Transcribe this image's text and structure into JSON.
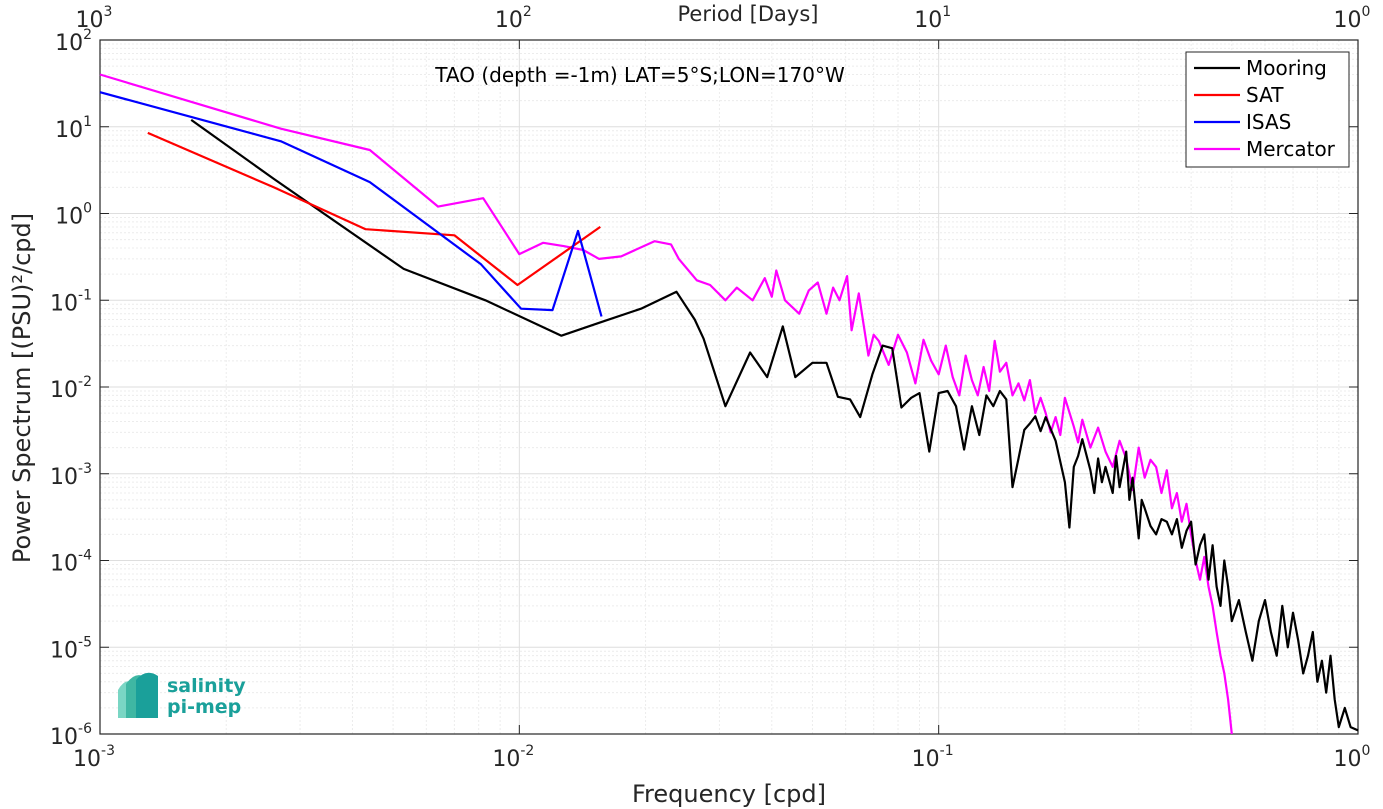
{
  "chart_data": {
    "type": "line",
    "title": "TAO (depth =-1m) LAT=5°S;LON=170°W",
    "xlabel": "Frequency [cpd]",
    "ylabel": "Power Spectrum [(PSU)²/cpd]",
    "top_xlabel": "Period [Days]",
    "xscale": "log",
    "yscale": "log",
    "xlim": [
      0.001,
      1
    ],
    "ylim": [
      1e-06,
      100
    ],
    "x_ticks": [
      {
        "value": 0.001,
        "base": "10",
        "exp": "-3"
      },
      {
        "value": 0.01,
        "base": "10",
        "exp": "-2"
      },
      {
        "value": 0.1,
        "base": "10",
        "exp": "-1"
      },
      {
        "value": 1,
        "base": "10",
        "exp": "0"
      }
    ],
    "top_ticks": [
      {
        "value": 0.001,
        "base": "10",
        "exp": "3"
      },
      {
        "value": 0.01,
        "base": "10",
        "exp": "2"
      },
      {
        "value": 0.1,
        "base": "10",
        "exp": "1"
      },
      {
        "value": 1,
        "base": "10",
        "exp": "0"
      }
    ],
    "y_ticks": [
      {
        "value": 100,
        "base": "10",
        "exp": "2"
      },
      {
        "value": 10,
        "base": "10",
        "exp": "1"
      },
      {
        "value": 1,
        "base": "10",
        "exp": "0"
      },
      {
        "value": 0.1,
        "base": "10",
        "exp": "-1"
      },
      {
        "value": 0.01,
        "base": "10",
        "exp": "-2"
      },
      {
        "value": 0.001,
        "base": "10",
        "exp": "-3"
      },
      {
        "value": 0.0001,
        "base": "10",
        "exp": "-4"
      },
      {
        "value": 1e-05,
        "base": "10",
        "exp": "-5"
      },
      {
        "value": 1e-06,
        "base": "10",
        "exp": "-6"
      }
    ],
    "grid": true,
    "legend_position": "top-right",
    "series": [
      {
        "name": "Mooring",
        "color": "#000000",
        "points": [
          [
            0.00165,
            12
          ],
          [
            0.0026,
            2.5
          ],
          [
            0.0053,
            0.23
          ],
          [
            0.0083,
            0.1
          ],
          [
            0.0126,
            0.039
          ],
          [
            0.0155,
            0.055
          ],
          [
            0.0195,
            0.08
          ],
          [
            0.0237,
            0.125
          ],
          [
            0.0262,
            0.06
          ],
          [
            0.0275,
            0.036
          ],
          [
            0.031,
            0.006
          ],
          [
            0.0355,
            0.025
          ],
          [
            0.039,
            0.013
          ],
          [
            0.0425,
            0.05
          ],
          [
            0.0455,
            0.013
          ],
          [
            0.05,
            0.019
          ],
          [
            0.054,
            0.019
          ],
          [
            0.0575,
            0.0077
          ],
          [
            0.0615,
            0.0072
          ],
          [
            0.065,
            0.0045
          ],
          [
            0.0695,
            0.014
          ],
          [
            0.0735,
            0.03
          ],
          [
            0.0775,
            0.028
          ],
          [
            0.0815,
            0.0058
          ],
          [
            0.086,
            0.0075
          ],
          [
            0.09,
            0.0085
          ],
          [
            0.095,
            0.0018
          ],
          [
            0.1,
            0.0085
          ],
          [
            0.105,
            0.009
          ],
          [
            0.11,
            0.006
          ],
          [
            0.115,
            0.0019
          ],
          [
            0.12,
            0.006
          ],
          [
            0.125,
            0.0028
          ],
          [
            0.13,
            0.008
          ],
          [
            0.135,
            0.006
          ],
          [
            0.14,
            0.009
          ],
          [
            0.145,
            0.0072
          ],
          [
            0.15,
            0.0007
          ],
          [
            0.155,
            0.0015
          ],
          [
            0.16,
            0.0032
          ],
          [
            0.165,
            0.0038
          ],
          [
            0.17,
            0.0046
          ],
          [
            0.175,
            0.0031
          ],
          [
            0.18,
            0.0045
          ],
          [
            0.19,
            0.0024
          ],
          [
            0.2,
            0.0008
          ],
          [
            0.205,
            0.00024
          ],
          [
            0.21,
            0.0012
          ],
          [
            0.215,
            0.0016
          ],
          [
            0.22,
            0.0025
          ],
          [
            0.23,
            0.0011
          ],
          [
            0.235,
            0.0006
          ],
          [
            0.24,
            0.0015
          ],
          [
            0.245,
            0.0008
          ],
          [
            0.25,
            0.0012
          ],
          [
            0.26,
            0.0006
          ],
          [
            0.265,
            0.0016
          ],
          [
            0.27,
            0.0007
          ],
          [
            0.28,
            0.0018
          ],
          [
            0.285,
            0.0005
          ],
          [
            0.29,
            0.0009
          ],
          [
            0.3,
            0.00018
          ],
          [
            0.305,
            0.0005
          ],
          [
            0.31,
            0.0004
          ],
          [
            0.32,
            0.00025
          ],
          [
            0.33,
            0.0002
          ],
          [
            0.34,
            0.0003
          ],
          [
            0.35,
            0.00028
          ],
          [
            0.36,
            0.0002
          ],
          [
            0.37,
            0.0003
          ],
          [
            0.38,
            0.00014
          ],
          [
            0.39,
            0.00022
          ],
          [
            0.4,
            0.00028
          ],
          [
            0.41,
            9e-05
          ],
          [
            0.42,
            0.00015
          ],
          [
            0.43,
            0.0002
          ],
          [
            0.44,
            6e-05
          ],
          [
            0.45,
            0.00015
          ],
          [
            0.46,
            5e-05
          ],
          [
            0.47,
            3e-05
          ],
          [
            0.48,
            0.0001
          ],
          [
            0.49,
            5e-05
          ],
          [
            0.5,
            2e-05
          ],
          [
            0.52,
            3.5e-05
          ],
          [
            0.54,
            1.5e-05
          ],
          [
            0.56,
            7e-06
          ],
          [
            0.58,
            2e-05
          ],
          [
            0.6,
            3.5e-05
          ],
          [
            0.62,
            1.5e-05
          ],
          [
            0.64,
            8e-06
          ],
          [
            0.66,
            3e-05
          ],
          [
            0.68,
            1e-05
          ],
          [
            0.7,
            2.5e-05
          ],
          [
            0.72,
            1.2e-05
          ],
          [
            0.74,
            5e-06
          ],
          [
            0.76,
            8e-06
          ],
          [
            0.78,
            1.5e-05
          ],
          [
            0.8,
            4e-06
          ],
          [
            0.82,
            7e-06
          ],
          [
            0.84,
            3e-06
          ],
          [
            0.86,
            8e-06
          ],
          [
            0.88,
            2.5e-06
          ],
          [
            0.9,
            1.2e-06
          ],
          [
            0.93,
            2e-06
          ],
          [
            0.96,
            1.2e-06
          ],
          [
            1.0,
            1.1e-06
          ]
        ]
      },
      {
        "name": "SAT",
        "color": "#ff0000",
        "points": [
          [
            0.0013,
            8.5
          ],
          [
            0.0026,
            2.0
          ],
          [
            0.0043,
            0.66
          ],
          [
            0.007,
            0.56
          ],
          [
            0.0099,
            0.15
          ],
          [
            0.0156,
            0.7
          ]
        ]
      },
      {
        "name": "ISAS",
        "color": "#0000ff",
        "points": [
          [
            0.001,
            25
          ],
          [
            0.0027,
            6.8
          ],
          [
            0.0044,
            2.3
          ],
          [
            0.0081,
            0.26
          ],
          [
            0.0101,
            0.08
          ],
          [
            0.012,
            0.077
          ],
          [
            0.0138,
            0.63
          ],
          [
            0.0157,
            0.065
          ]
        ]
      },
      {
        "name": "Mercator",
        "color": "#ff00ff",
        "points": [
          [
            0.001,
            40
          ],
          [
            0.0027,
            9.5
          ],
          [
            0.0044,
            5.4
          ],
          [
            0.0064,
            1.2
          ],
          [
            0.0082,
            1.5
          ],
          [
            0.01,
            0.34
          ],
          [
            0.0114,
            0.46
          ],
          [
            0.0128,
            0.42
          ],
          [
            0.0142,
            0.38
          ],
          [
            0.0155,
            0.3
          ],
          [
            0.0175,
            0.32
          ],
          [
            0.021,
            0.48
          ],
          [
            0.023,
            0.44
          ],
          [
            0.024,
            0.3
          ],
          [
            0.0265,
            0.17
          ],
          [
            0.0285,
            0.15
          ],
          [
            0.031,
            0.1
          ],
          [
            0.033,
            0.14
          ],
          [
            0.036,
            0.1
          ],
          [
            0.0385,
            0.18
          ],
          [
            0.04,
            0.11
          ],
          [
            0.041,
            0.22
          ],
          [
            0.043,
            0.1
          ],
          [
            0.0465,
            0.07
          ],
          [
            0.049,
            0.13
          ],
          [
            0.0515,
            0.16
          ],
          [
            0.054,
            0.07
          ],
          [
            0.056,
            0.14
          ],
          [
            0.058,
            0.1
          ],
          [
            0.0605,
            0.19
          ],
          [
            0.062,
            0.045
          ],
          [
            0.0645,
            0.12
          ],
          [
            0.068,
            0.023
          ],
          [
            0.07,
            0.04
          ],
          [
            0.072,
            0.034
          ],
          [
            0.076,
            0.018
          ],
          [
            0.08,
            0.04
          ],
          [
            0.084,
            0.025
          ],
          [
            0.088,
            0.011
          ],
          [
            0.092,
            0.035
          ],
          [
            0.096,
            0.02
          ],
          [
            0.1,
            0.014
          ],
          [
            0.104,
            0.03
          ],
          [
            0.108,
            0.013
          ],
          [
            0.112,
            0.008
          ],
          [
            0.116,
            0.023
          ],
          [
            0.12,
            0.012
          ],
          [
            0.124,
            0.008
          ],
          [
            0.128,
            0.017
          ],
          [
            0.132,
            0.009
          ],
          [
            0.136,
            0.034
          ],
          [
            0.14,
            0.015
          ],
          [
            0.145,
            0.019
          ],
          [
            0.15,
            0.008
          ],
          [
            0.155,
            0.011
          ],
          [
            0.16,
            0.007
          ],
          [
            0.165,
            0.012
          ],
          [
            0.17,
            0.005
          ],
          [
            0.175,
            0.0075
          ],
          [
            0.18,
            0.005
          ],
          [
            0.185,
            0.003
          ],
          [
            0.19,
            0.0045
          ],
          [
            0.195,
            0.0028
          ],
          [
            0.2,
            0.0075
          ],
          [
            0.21,
            0.0035
          ],
          [
            0.215,
            0.0023
          ],
          [
            0.22,
            0.0042
          ],
          [
            0.23,
            0.002
          ],
          [
            0.24,
            0.0034
          ],
          [
            0.25,
            0.0018
          ],
          [
            0.26,
            0.0012
          ],
          [
            0.27,
            0.0024
          ],
          [
            0.28,
            0.0015
          ],
          [
            0.29,
            0.00065
          ],
          [
            0.3,
            0.002
          ],
          [
            0.31,
            0.0009
          ],
          [
            0.32,
            0.00145
          ],
          [
            0.33,
            0.0012
          ],
          [
            0.34,
            0.0006
          ],
          [
            0.35,
            0.0011
          ],
          [
            0.36,
            0.0004
          ],
          [
            0.37,
            0.0006
          ],
          [
            0.38,
            0.00028
          ],
          [
            0.39,
            0.00045
          ],
          [
            0.4,
            0.0002
          ],
          [
            0.41,
            0.0001
          ],
          [
            0.42,
            6e-05
          ],
          [
            0.43,
            0.00011
          ],
          [
            0.44,
            5e-05
          ],
          [
            0.45,
            3e-05
          ],
          [
            0.46,
            1.5e-05
          ],
          [
            0.47,
            8e-06
          ],
          [
            0.48,
            5e-06
          ],
          [
            0.49,
            2.5e-06
          ],
          [
            0.5,
            1e-06
          ]
        ]
      }
    ]
  },
  "logo": {
    "line1": "salinity",
    "line2": "pi-mep"
  },
  "colors": {
    "axis": "#262626",
    "grid": "#d9d9d9",
    "logo": "#1aa09a"
  }
}
